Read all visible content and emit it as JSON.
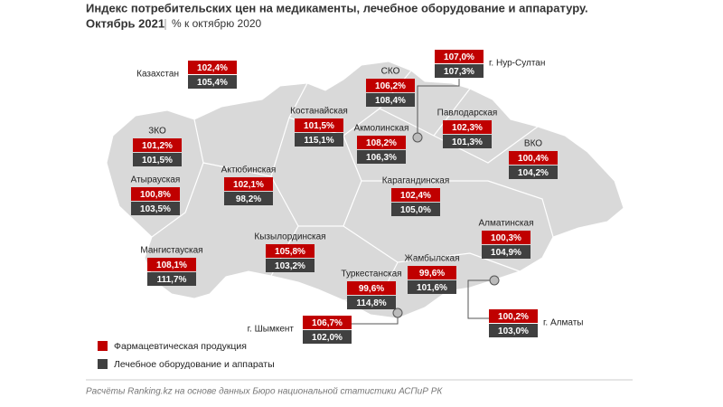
{
  "header": {
    "title": "Индекс потребительских цен на медикаменты, лечебное оборудование и аппаратуру.",
    "date": "Октябрь 2021",
    "note": "% к октябрю 2020"
  },
  "regions": [
    {
      "name": "Казахстан",
      "pharma": "102,4%",
      "equipment": "105,4%"
    },
    {
      "name": "СКО",
      "pharma": "106,2%",
      "equipment": "108,4%"
    },
    {
      "name": "г. Нур-Султан",
      "pharma": "107,0%",
      "equipment": "107,3%"
    },
    {
      "name": "Костанайская",
      "pharma": "101,5%",
      "equipment": "115,1%"
    },
    {
      "name": "Акмолинская",
      "pharma": "108,2%",
      "equipment": "106,3%"
    },
    {
      "name": "Павлодарская",
      "pharma": "102,3%",
      "equipment": "101,3%"
    },
    {
      "name": "ЗКО",
      "pharma": "101,2%",
      "equipment": "101,5%"
    },
    {
      "name": "ВКО",
      "pharma": "100,4%",
      "equipment": "104,2%"
    },
    {
      "name": "Атырауская",
      "pharma": "100,8%",
      "equipment": "103,5%"
    },
    {
      "name": "Актюбинская",
      "pharma": "102,1%",
      "equipment": "98,2%"
    },
    {
      "name": "Карагандинская",
      "pharma": "102,4%",
      "equipment": "105,0%"
    },
    {
      "name": "Алматинская",
      "pharma": "100,3%",
      "equipment": "104,9%"
    },
    {
      "name": "Кызылординская",
      "pharma": "105,8%",
      "equipment": "103,2%"
    },
    {
      "name": "Мангистауская",
      "pharma": "108,1%",
      "equipment": "111,7%"
    },
    {
      "name": "Жамбылская",
      "pharma": "99,6%",
      "equipment": "101,6%"
    },
    {
      "name": "Туркестанская",
      "pharma": "99,6%",
      "equipment": "114,8%"
    },
    {
      "name": "г. Шымкент",
      "pharma": "106,7%",
      "equipment": "102,0%"
    },
    {
      "name": "г. Алматы",
      "pharma": "100,2%",
      "equipment": "103,0%"
    }
  ],
  "legend": [
    "Фармацевтическая продукция",
    "Лечебное оборудование и аппараты"
  ],
  "source": "Расчёты Ranking.kz на основе данных Бюро национальной статистики АСПиР РК"
}
